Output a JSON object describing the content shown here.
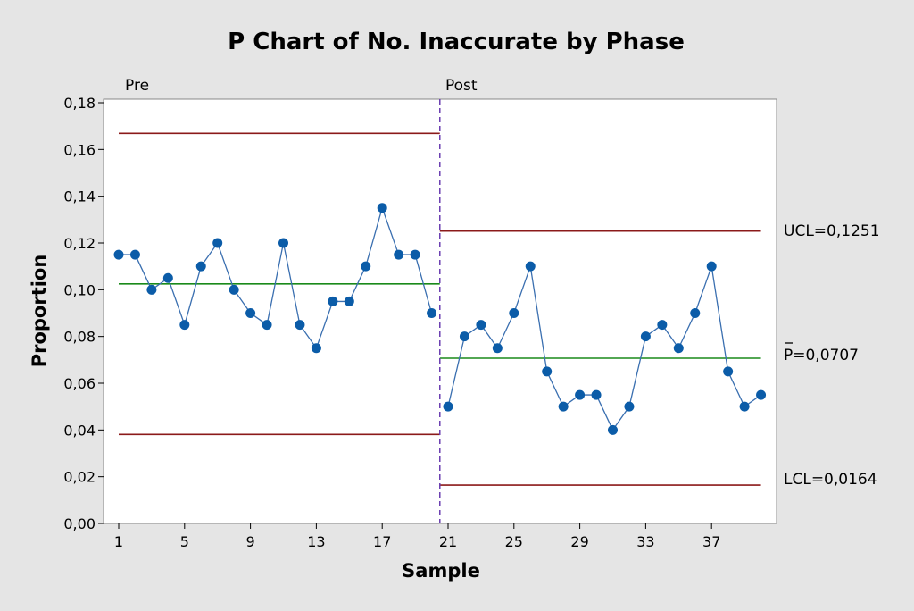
{
  "chart_data": {
    "type": "line",
    "chart_kind": "P chart",
    "title": "P Chart of No. Inaccurate by Phase",
    "xlabel": "Sample",
    "ylabel": "Proportion",
    "xlim": [
      0,
      41
    ],
    "ylim": [
      0,
      0.18
    ],
    "y_ticks": [
      "0,00",
      "0,02",
      "0,04",
      "0,06",
      "0,08",
      "0,10",
      "0,12",
      "0,14",
      "0,16",
      "0,18"
    ],
    "x_ticks": [
      "1",
      "5",
      "9",
      "13",
      "17",
      "21",
      "25",
      "29",
      "33",
      "37"
    ],
    "grid": false,
    "phases": [
      {
        "name": "Pre",
        "x": [
          1,
          2,
          3,
          4,
          5,
          6,
          7,
          8,
          9,
          10,
          11,
          12,
          13,
          14,
          15,
          16,
          17,
          18,
          19,
          20
        ],
        "values": [
          0.115,
          0.115,
          0.1,
          0.105,
          0.085,
          0.11,
          0.12,
          0.1,
          0.09,
          0.085,
          0.12,
          0.085,
          0.075,
          0.095,
          0.095,
          0.11,
          0.135,
          0.115,
          0.115,
          0.09
        ],
        "center": 0.1025,
        "ucl": 0.1669,
        "lcl": 0.0381
      },
      {
        "name": "Post",
        "x": [
          21,
          22,
          23,
          24,
          25,
          26,
          27,
          28,
          29,
          30,
          31,
          32,
          33,
          34,
          35,
          36,
          37,
          38,
          39,
          40
        ],
        "values": [
          0.05,
          0.08,
          0.085,
          0.075,
          0.09,
          0.11,
          0.065,
          0.05,
          0.055,
          0.055,
          0.04,
          0.05,
          0.08,
          0.085,
          0.075,
          0.09,
          0.11,
          0.065,
          0.05,
          0.055
        ],
        "center": 0.0707,
        "ucl": 0.1251,
        "lcl": 0.0164
      }
    ],
    "limit_labels": {
      "ucl": "UCL=0,1251",
      "center": "P=0,0707",
      "lcl": "LCL=0,0164"
    },
    "colors": {
      "background": "#e5e5e5",
      "plot_area": "#ffffff",
      "data": "#0b5ca8",
      "data_line": "#3a6fb0",
      "center_line": "#1a8a1a",
      "limit_line": "#8b1a1a",
      "phase_divider": "#6a3db0"
    }
  }
}
